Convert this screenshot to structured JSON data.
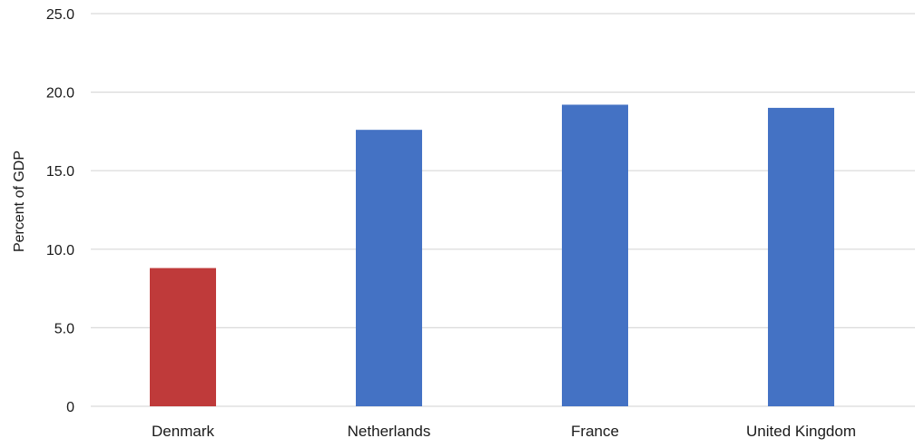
{
  "chart_data": {
    "type": "bar",
    "categories": [
      "Denmark",
      "Netherlands",
      "France",
      "United Kingdom"
    ],
    "values": [
      8.8,
      17.6,
      19.2,
      19.0
    ],
    "colors": [
      "#bf3a3a",
      "#4472c4",
      "#4472c4",
      "#4472c4"
    ],
    "title": "",
    "xlabel": "",
    "ylabel": "Percent of GDP",
    "ylim": [
      0,
      25
    ],
    "yticks": [
      0,
      5,
      10,
      15,
      20,
      25
    ],
    "ytick_labels": [
      "0",
      "5.0",
      "10.0",
      "15.0",
      "20.0",
      "25.0"
    ],
    "grid": true,
    "legend": "none"
  }
}
